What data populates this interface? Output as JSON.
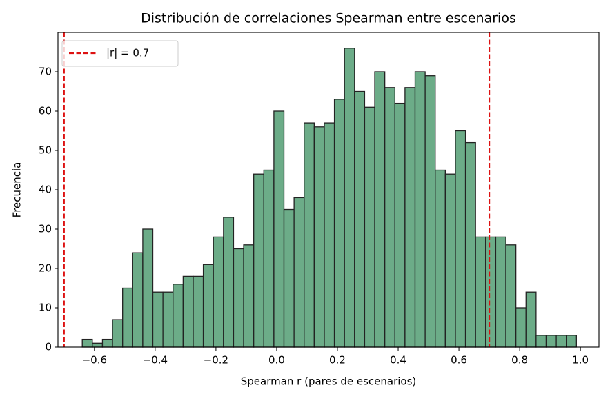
{
  "chart_data": {
    "type": "histogram",
    "title": "Distribución de correlaciones Spearman entre escenarios",
    "xlabel": "Spearman r (pares de escenarios)",
    "ylabel": "Frecuencia",
    "bins": [
      -0.64,
      -0.6068,
      -0.5736,
      -0.5404,
      -0.5072,
      -0.474,
      -0.4408,
      -0.4076,
      -0.3744,
      -0.3412,
      -0.308,
      -0.2748,
      -0.2416,
      -0.2084,
      -0.1752,
      -0.142,
      -0.1088,
      -0.0756,
      -0.0424,
      -0.0092,
      0.024,
      0.0572,
      0.0904,
      0.1236,
      0.1568,
      0.19,
      0.2232,
      0.2564,
      0.2896,
      0.3228,
      0.356,
      0.3892,
      0.4224,
      0.4556,
      0.4888,
      0.522,
      0.5552,
      0.5884,
      0.6216,
      0.6548,
      0.688,
      0.7212,
      0.7544,
      0.7876,
      0.8208,
      0.854,
      0.8872,
      0.9204,
      0.9536,
      0.9868
    ],
    "values": [
      2,
      1,
      2,
      7,
      15,
      24,
      30,
      14,
      14,
      16,
      18,
      18,
      21,
      28,
      33,
      25,
      26,
      44,
      45,
      60,
      35,
      38,
      57,
      56,
      57,
      63,
      76,
      65,
      61,
      70,
      66,
      62,
      66,
      70,
      69,
      45,
      44,
      55,
      52,
      28,
      28,
      28,
      26,
      10,
      14,
      3,
      3,
      3,
      3
    ],
    "color": "#67a984",
    "edgecolor": "#222222",
    "xlim": [
      -0.72,
      1.061
    ],
    "ylim": [
      0,
      80
    ],
    "xticks": [
      {
        "value": -0.6,
        "label": "−0.6"
      },
      {
        "value": -0.4,
        "label": "−0.4"
      },
      {
        "value": -0.2,
        "label": "−0.2"
      },
      {
        "value": 0,
        "label": "0.0"
      },
      0.2,
      0.4,
      0.6,
      0.8,
      {
        "value": 1,
        "label": "1.0"
      }
    ],
    "yticks": [
      0,
      10,
      20,
      30,
      40,
      50,
      60,
      70
    ],
    "reference_lines": {
      "values": [
        -0.7,
        0.7
      ],
      "label": "|r| = 0.7",
      "color": "#dd1111"
    },
    "legend": "upper left"
  }
}
